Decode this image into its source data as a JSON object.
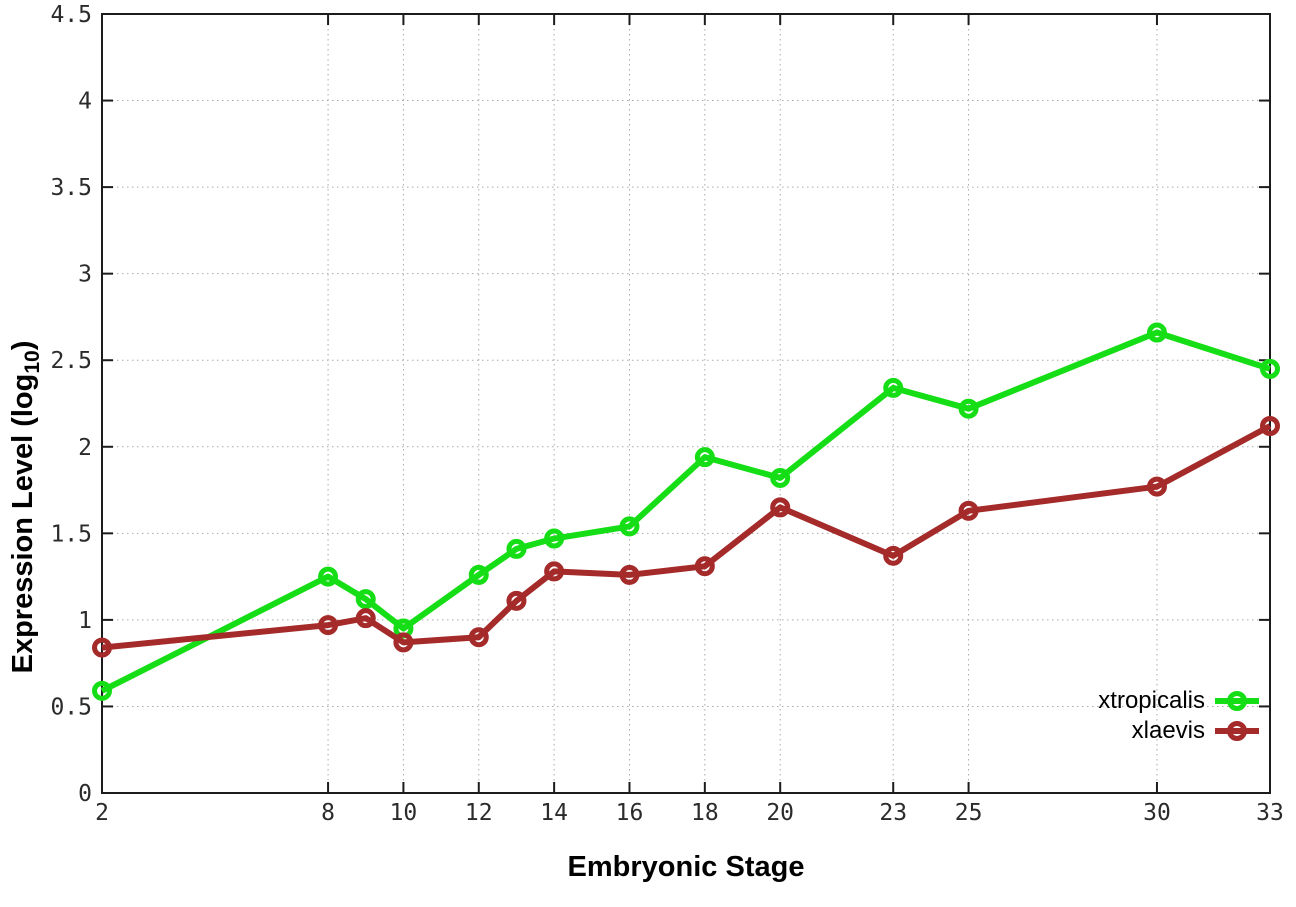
{
  "chart_data": {
    "type": "line",
    "title": "",
    "xlabel": "Embryonic Stage",
    "ylabel": {
      "main": "Expression Level (log",
      "sub": "10",
      "end": ")"
    },
    "xlim": [
      2,
      33
    ],
    "ylim": [
      0,
      4.5
    ],
    "grid": "dotted",
    "legend_position": "inside-bottom-right",
    "x_ticks": [
      {
        "value": 2,
        "label": "2"
      },
      {
        "value": 8,
        "label": "8"
      },
      {
        "value": 10,
        "label": "10"
      },
      {
        "value": 12,
        "label": "12"
      },
      {
        "value": 14,
        "label": "14"
      },
      {
        "value": 16,
        "label": "16"
      },
      {
        "value": 18,
        "label": "18"
      },
      {
        "value": 20,
        "label": "20"
      },
      {
        "value": 23,
        "label": "23"
      },
      {
        "value": 25,
        "label": "25"
      },
      {
        "value": 30,
        "label": "30"
      },
      {
        "value": 33,
        "label": "33"
      }
    ],
    "y_ticks": [
      {
        "value": 0,
        "label": "0"
      },
      {
        "value": 0.5,
        "label": "0.5"
      },
      {
        "value": 1,
        "label": "1"
      },
      {
        "value": 1.5,
        "label": "1.5"
      },
      {
        "value": 2,
        "label": "2"
      },
      {
        "value": 2.5,
        "label": "2.5"
      },
      {
        "value": 3,
        "label": "3"
      },
      {
        "value": 3.5,
        "label": "3.5"
      },
      {
        "value": 4,
        "label": "4"
      },
      {
        "value": 4.5,
        "label": "4.5"
      }
    ],
    "x": [
      2,
      8,
      9,
      10,
      12,
      13,
      14,
      16,
      18,
      20,
      23,
      25,
      30,
      33
    ],
    "series": [
      {
        "name": "xtropicalis",
        "color": "#16DE16",
        "marker": "open-circle",
        "values": [
          0.59,
          1.25,
          1.12,
          0.95,
          1.26,
          1.41,
          1.47,
          1.54,
          1.94,
          1.82,
          2.34,
          2.22,
          2.66,
          2.45
        ]
      },
      {
        "name": "xlaevis",
        "color": "#A52A2A",
        "marker": "open-circle",
        "values": [
          0.84,
          0.97,
          1.01,
          0.87,
          0.9,
          1.11,
          1.28,
          1.26,
          1.31,
          1.65,
          1.37,
          1.63,
          1.77,
          2.12
        ]
      }
    ]
  },
  "styles": {
    "background": "#FFFFFF",
    "axis_color": "#1C1C1C",
    "grid_color": "#AAAAAA",
    "tick_label_color": "#2B2B2B",
    "text_color": "#000000"
  }
}
